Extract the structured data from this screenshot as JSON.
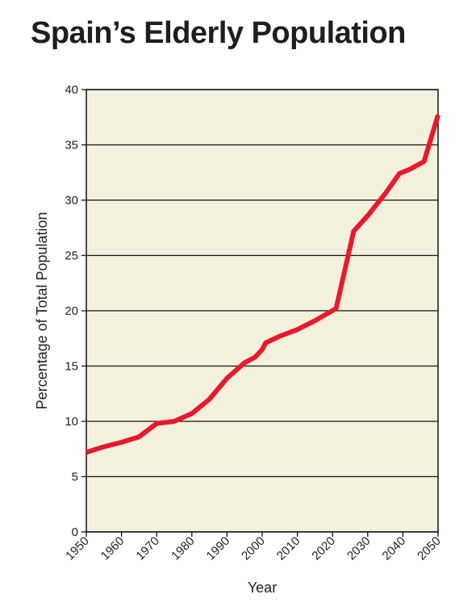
{
  "colors": {
    "plot_background": "#f3f0dd",
    "line": "#e8192c",
    "grid": "#111111",
    "text": "#222222"
  },
  "chart_data": {
    "type": "line",
    "title": "Spain’s Elderly Population",
    "xlabel": "Year",
    "ylabel": "Percentage of Total Population",
    "xlim": [
      1950,
      2050
    ],
    "ylim": [
      0,
      40
    ],
    "x_ticks": [
      "1950",
      "1960",
      "1970",
      "1980",
      "1990",
      "2000",
      "2010",
      "2020",
      "2030",
      "2040",
      "2050"
    ],
    "y_ticks": [
      "0",
      "5",
      "10",
      "15",
      "20",
      "25",
      "30",
      "35",
      "40"
    ],
    "grid": "horizontal",
    "series": [
      {
        "x": [
          1950,
          1955,
          1960,
          1965,
          1970,
          1975,
          1980,
          1985,
          1990,
          1995,
          1998,
          2000,
          2001,
          2005,
          2010,
          2015,
          2021,
          2026,
          2030,
          2035,
          2039,
          2042,
          2046,
          2050
        ],
        "y": [
          7.2,
          7.7,
          8.1,
          8.6,
          9.8,
          10.0,
          10.7,
          12.0,
          13.9,
          15.3,
          15.8,
          16.5,
          17.1,
          17.7,
          18.3,
          19.1,
          20.2,
          27.2,
          28.6,
          30.6,
          32.4,
          32.8,
          33.5,
          37.7
        ]
      }
    ]
  }
}
